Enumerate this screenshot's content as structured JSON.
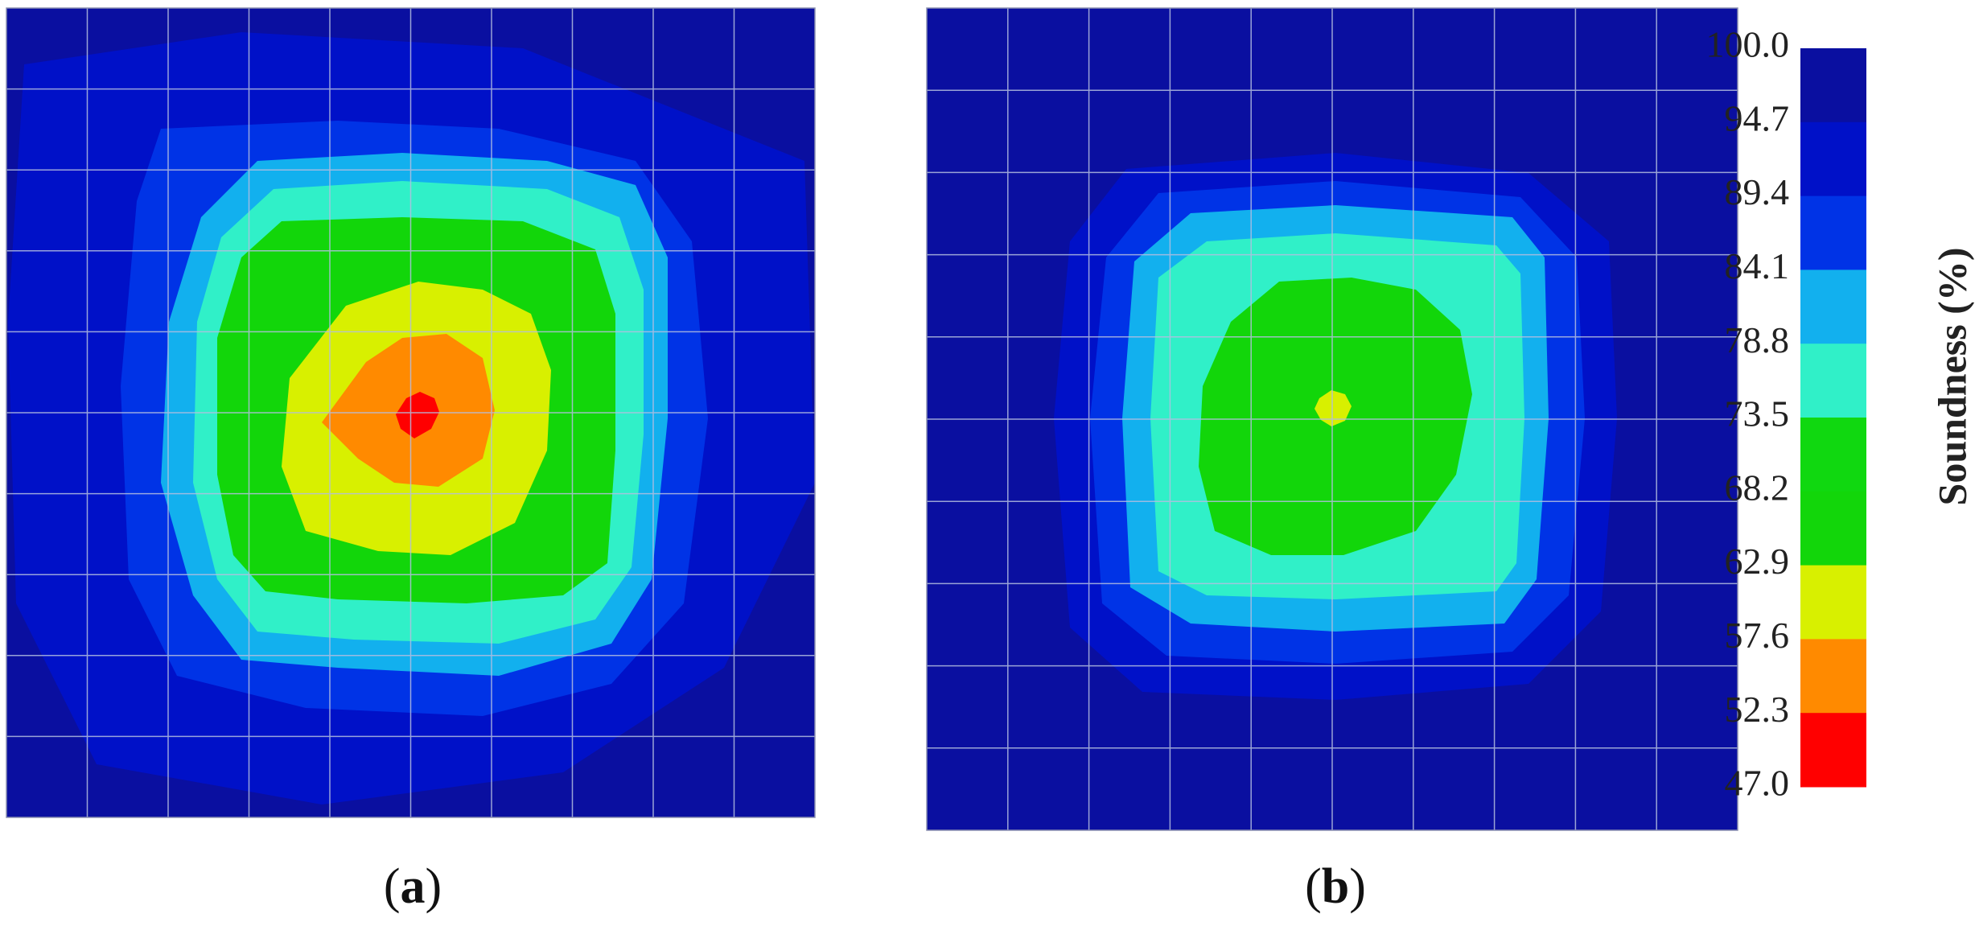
{
  "chart_data": {
    "type": "heatmap",
    "colorbar": {
      "title": "Soundness (%)",
      "ticks": [
        "100.0",
        "94.7",
        "89.4",
        "84.1",
        "78.8",
        "73.5",
        "68.2",
        "62.9",
        "57.6",
        "52.3",
        "47.0"
      ],
      "min": 47.0,
      "max": 100.0,
      "bands": [
        {
          "from": 94.7,
          "to": 100.0,
          "color": "#0A0FA0"
        },
        {
          "from": 89.4,
          "to": 94.7,
          "color": "#0011C8"
        },
        {
          "from": 84.1,
          "to": 89.4,
          "color": "#0033E6"
        },
        {
          "from": 78.8,
          "to": 84.1,
          "color": "#12B0EE"
        },
        {
          "from": 73.5,
          "to": 78.8,
          "color": "#30F0C8"
        },
        {
          "from": 68.2,
          "to": 73.5,
          "color": "#10D810"
        },
        {
          "from": 62.9,
          "to": 68.2,
          "color": "#12D60A"
        },
        {
          "from": 57.6,
          "to": 62.9,
          "color": "#D8F000"
        },
        {
          "from": 52.3,
          "to": 57.6,
          "color": "#FF8A00"
        },
        {
          "from": 47.0,
          "to": 52.3,
          "color": "#FF0000"
        }
      ]
    },
    "panels": [
      {
        "label": "a",
        "grid": {
          "rows": 10,
          "cols": 10
        },
        "background_value": 95,
        "contours": [
          {
            "value": 90,
            "color": "#0033E6"
          },
          {
            "value": 85,
            "color": "#12B0EE"
          },
          {
            "value": 80,
            "color": "#30F0C8"
          },
          {
            "value": 70,
            "color": "#12D60A"
          },
          {
            "value": 60,
            "color": "#D8F000"
          },
          {
            "value": 55,
            "color": "#FF8A00"
          },
          {
            "value": 50,
            "color": "#FF0000"
          }
        ],
        "min_value_approx": 47.0
      },
      {
        "label": "b",
        "grid": {
          "rows": 10,
          "cols": 10
        },
        "background_value": 97,
        "contours": [
          {
            "value": 90,
            "color": "#0033E6"
          },
          {
            "value": 85,
            "color": "#12B0EE"
          },
          {
            "value": 80,
            "color": "#30F0C8"
          },
          {
            "value": 70,
            "color": "#12D60A"
          },
          {
            "value": 60,
            "color": "#D8F000"
          }
        ],
        "min_value_approx": 60.0
      }
    ]
  },
  "labels": {
    "a_open": "(",
    "a_letter": "a",
    "a_close": ")",
    "b_open": "(",
    "b_letter": "b",
    "b_close": ")"
  }
}
